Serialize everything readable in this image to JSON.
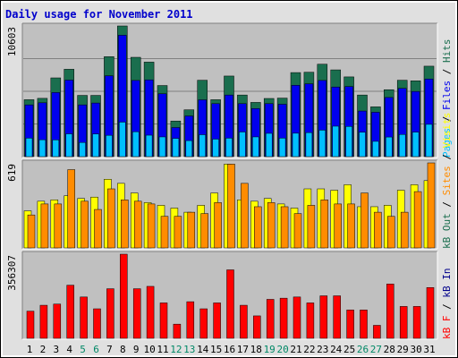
{
  "chart_data": {
    "type": "bar",
    "title": "Daily usage for November 2011",
    "x": [
      "1",
      "2",
      "3",
      "4",
      "5",
      "6",
      "7",
      "8",
      "9",
      "10",
      "11",
      "12",
      "13",
      "14",
      "15",
      "16",
      "17",
      "18",
      "19",
      "20",
      "21",
      "22",
      "23",
      "24",
      "25",
      "26",
      "27",
      "28",
      "29",
      "30",
      "31"
    ],
    "weekend_days": [
      5,
      6,
      12,
      13,
      19,
      20,
      26,
      27
    ],
    "colors": {
      "panel_bg": "#c0c0c0",
      "hits": "#1a6e4e",
      "files": "#0000ee",
      "pages": "#00bfff",
      "visits": "#ffff00",
      "sites": "#ff8c00",
      "kb_in": "#00008b",
      "kb_f": "#ff0000",
      "kb_out": "#1a6e4e",
      "title": "#0000cc",
      "weekend_label": "#008866",
      "weekday_label": "#000000"
    },
    "panels": [
      {
        "id": "top",
        "ymax_label": "10603",
        "ylim": [
          0,
          10603
        ],
        "legend": [
          {
            "text": "Hits",
            "color": "#1a6e4e"
          },
          {
            "text": "Files",
            "color": "#0000ee"
          },
          {
            "text": "Pages",
            "color": "#00bfff"
          }
        ],
        "series": [
          {
            "name": "Hits",
            "values": [
              4620,
              4730,
              6390,
              7090,
              4970,
              4970,
              8110,
              10603,
              8060,
              7670,
              5770,
              2890,
              3800,
              6200,
              4620,
              6540,
              5000,
              4400,
              4720,
              4750,
              6820,
              6850,
              7500,
              7040,
              6470,
              5000,
              4040,
              5430,
              6200,
              6150,
              7340
            ]
          },
          {
            "name": "Files",
            "values": [
              4200,
              4370,
              5200,
              6210,
              4200,
              4350,
              6560,
              9850,
              6180,
              6230,
              5100,
              2360,
              3300,
              4610,
              4300,
              5000,
              4300,
              3900,
              4300,
              4250,
              5790,
              5910,
              6180,
              5650,
              5690,
              3700,
              3600,
              4800,
              5540,
              5290,
              6300
            ]
          },
          {
            "name": "Pages",
            "values": [
              1500,
              1370,
              1360,
              1850,
              1150,
              1840,
              1730,
              2800,
              2020,
              1740,
              1600,
              1480,
              1300,
              1780,
              1420,
              1500,
              2000,
              1600,
              1890,
              1500,
              1900,
              1950,
              2150,
              2470,
              2450,
              1980,
              1240,
              1590,
              1800,
              1990,
              2620
            ]
          }
        ]
      },
      {
        "id": "middle",
        "ymax_label": "619",
        "ylim": [
          0,
          619
        ],
        "legend": [
          {
            "text": "Visits",
            "color": "#ffff00"
          },
          {
            "text": "Sites",
            "color": "#ff8c00"
          },
          {
            "text": "kB Out",
            "color": "#1a6e4e"
          }
        ],
        "series": [
          {
            "name": "Visits",
            "values": [
              270,
              340,
              350,
              380,
              360,
              370,
              500,
              470,
              400,
              330,
              310,
              290,
              260,
              310,
              400,
              610,
              350,
              340,
              360,
              320,
              290,
              430,
              430,
              420,
              460,
              300,
              300,
              310,
              420,
              460,
              490
            ]
          },
          {
            "name": "Sites",
            "values": [
              240,
              320,
              320,
              570,
              340,
              280,
              430,
              350,
              340,
              320,
              230,
              230,
              260,
              250,
              330,
              610,
              470,
              300,
              330,
              300,
              250,
              310,
              350,
              320,
              320,
              400,
              260,
              230,
              260,
              410,
              619
            ]
          }
        ]
      },
      {
        "id": "bottom",
        "ymax_label": "356307",
        "ylim": [
          0,
          356307
        ],
        "legend": [
          {
            "text": "kB In",
            "color": "#00008b"
          },
          {
            "text": "kB F",
            "color": "#ff0000"
          }
        ],
        "series": [
          {
            "name": "kB F",
            "values": [
              115000,
              140000,
              145000,
              225000,
              175000,
              125000,
              210000,
              356307,
              210000,
              220000,
              150000,
              60000,
              155000,
              125000,
              150000,
              290000,
              140000,
              95000,
              165000,
              170000,
              175000,
              150000,
              180000,
              180000,
              120000,
              120000,
              55000,
              230000,
              135000,
              135000,
              215000
            ]
          }
        ]
      }
    ]
  }
}
